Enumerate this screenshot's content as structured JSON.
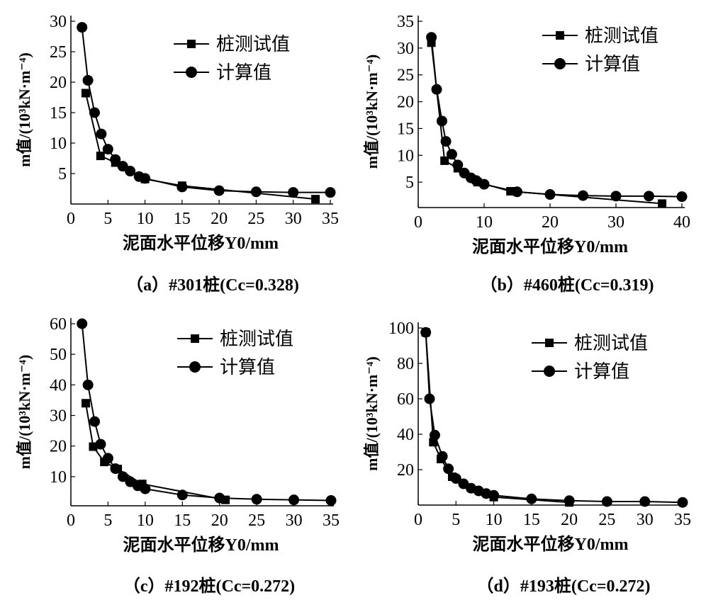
{
  "chart_data": [
    {
      "type": "line",
      "caption": "（a）#301桩(Cc=0.328)",
      "xlabel": "泥面水平位移Y0/mm",
      "ylabel": "m值/(10³kN·m⁻⁴)",
      "xlim": [
        0,
        35
      ],
      "ylim": [
        0,
        30
      ],
      "xticks": [
        0,
        5,
        10,
        15,
        20,
        25,
        30,
        35
      ],
      "yticks": [
        5,
        10,
        15,
        20,
        25,
        30
      ],
      "legend": "top-right",
      "series": [
        {
          "name": "桩测试值",
          "marker": "square",
          "x": [
            2,
            4,
            6,
            10,
            15,
            33
          ],
          "y": [
            18.2,
            7.9,
            6.8,
            4.1,
            3.0,
            0.8
          ]
        },
        {
          "name": "计算值",
          "marker": "circle",
          "x": [
            1.5,
            2.3,
            3.2,
            4.1,
            5,
            6,
            7,
            8,
            9.2,
            10,
            15,
            20,
            25,
            30,
            35
          ],
          "y": [
            29,
            20.3,
            15,
            11.5,
            9,
            7.3,
            6.2,
            5.4,
            4.5,
            4.2,
            2.8,
            2.2,
            2.0,
            1.9,
            1.9
          ]
        }
      ]
    },
    {
      "type": "line",
      "caption": "（b）#460桩(Cc=0.319)",
      "xlabel": "泥面水平位移Y0/mm",
      "ylabel": "m值/(10³kN·m⁻⁴)",
      "xlim": [
        0,
        40
      ],
      "ylim": [
        0,
        35
      ],
      "xticks": [
        0,
        10,
        20,
        30,
        40
      ],
      "yticks": [
        5,
        10,
        15,
        20,
        25,
        30,
        35
      ],
      "legend": "top-right",
      "series": [
        {
          "name": "桩测试值",
          "marker": "square",
          "x": [
            2,
            4,
            6,
            9,
            14,
            37
          ],
          "y": [
            31,
            9,
            7.6,
            5,
            3.3,
            1.0
          ]
        },
        {
          "name": "计算值",
          "marker": "circle",
          "x": [
            2,
            2.8,
            3.6,
            4.2,
            5.1,
            6,
            7,
            8,
            8.8,
            10,
            15,
            20,
            25,
            30,
            35,
            40
          ],
          "y": [
            32,
            22.3,
            16.4,
            12.6,
            10.2,
            8.2,
            6.7,
            5.8,
            5.3,
            4.6,
            3.2,
            2.7,
            2.5,
            2.4,
            2.4,
            2.3
          ]
        }
      ]
    },
    {
      "type": "line",
      "caption": "（c）#192桩(Cc=0.272)",
      "xlabel": "泥面水平位移Y0/mm",
      "ylabel": "m值/(10³kN·m⁻⁴)",
      "xlim": [
        0,
        35
      ],
      "ylim": [
        0,
        60
      ],
      "xticks": [
        0,
        5,
        10,
        15,
        20,
        25,
        30,
        35
      ],
      "yticks": [
        10,
        20,
        30,
        40,
        50,
        60
      ],
      "legend": "top-right",
      "series": [
        {
          "name": "桩测试值",
          "marker": "square",
          "x": [
            2,
            3,
            4.5,
            6.3,
            9.6,
            20.8
          ],
          "y": [
            34,
            19.8,
            14.8,
            12.5,
            7.6,
            2.4
          ]
        },
        {
          "name": "计算值",
          "marker": "circle",
          "x": [
            1.5,
            2.3,
            3.2,
            4,
            5,
            6,
            7,
            8,
            9,
            10,
            15,
            20,
            25,
            30,
            35
          ],
          "y": [
            60,
            40,
            28,
            20.6,
            16,
            12.6,
            10,
            8.3,
            7,
            6,
            4,
            3,
            2.6,
            2.4,
            2.2
          ]
        }
      ]
    },
    {
      "type": "line",
      "caption": "（d）#193桩(Cc=0.272)",
      "xlabel": "泥面水平位移Y0/mm",
      "ylabel": "m值/(10³kN·m⁻⁴)",
      "xlim": [
        0,
        35
      ],
      "ylim": [
        0,
        100
      ],
      "xticks": [
        0,
        5,
        10,
        15,
        20,
        25,
        30,
        35
      ],
      "yticks": [
        20,
        40,
        60,
        80,
        100
      ],
      "legend": "top-right",
      "series": [
        {
          "name": "桩测试值",
          "marker": "square",
          "x": [
            1,
            2,
            3,
            4.5,
            10,
            20
          ],
          "y": [
            97.5,
            35.5,
            26,
            16,
            4.5,
            1.5
          ]
        },
        {
          "name": "计算值",
          "marker": "circle",
          "x": [
            1,
            1.5,
            2.2,
            3.2,
            4,
            5,
            6,
            7,
            8,
            9,
            10,
            15,
            20,
            25,
            30,
            35
          ],
          "y": [
            97.5,
            60,
            39.5,
            27.5,
            20.5,
            15,
            12,
            9.5,
            8,
            6.5,
            5.5,
            3.5,
            2.5,
            2,
            2,
            1.5
          ]
        }
      ]
    }
  ]
}
